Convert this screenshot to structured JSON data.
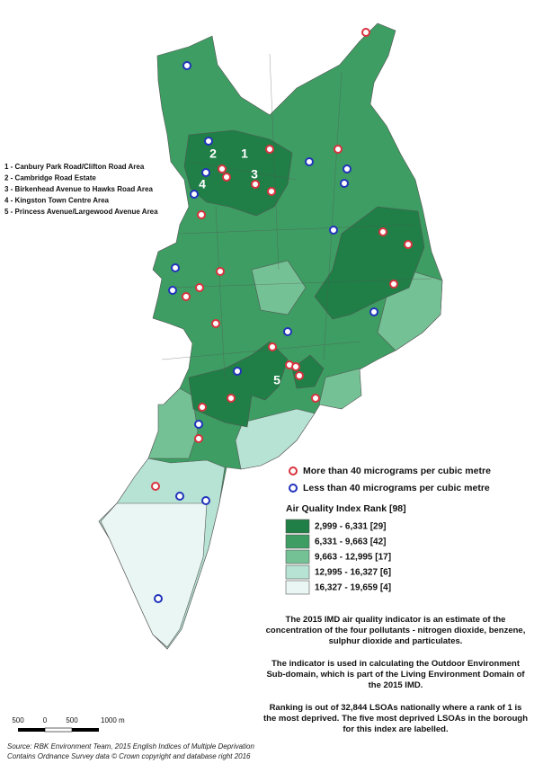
{
  "areas": [
    "1 -  Canbury Park Road/Clifton Road Area",
    "2 -  Cambridge Road Estate",
    "3 -  Birkenhead Avenue to Hawks Road Area",
    "4 -  Kingston Town Centre Area",
    "5 -  Princess Avenue/Largewood Avenue Area"
  ],
  "map_labels": [
    "1",
    "2",
    "3",
    "4",
    "5"
  ],
  "markers_legend": [
    {
      "label": "More than 40 micrograms per cubic metre",
      "color": "#d9333f"
    },
    {
      "label": "Less than 40 micrograms per cubic metre",
      "color": "#2233bb"
    }
  ],
  "legend": {
    "title": "Air Quality Index Rank [98]",
    "classes": [
      {
        "label": "2,999 - 6,331  [29]",
        "color": "#1f7f46"
      },
      {
        "label": "6,331 - 9,663  [42]",
        "color": "#3d9d62"
      },
      {
        "label": "9,663 - 12,995  [17]",
        "color": "#74c195"
      },
      {
        "label": "12,995 - 16,327  [6]",
        "color": "#b7e3d4"
      },
      {
        "label": "16,327 - 19,659  [4]",
        "color": "#e9f6f3"
      }
    ]
  },
  "notes": [
    "The 2015 IMD air quality indicator is an estimate of the concentration of the four pollutants - nitrogen dioxide, benzene, sulphur dioxide and particulates.",
    "The indicator is used in calculating the Outdoor Environment Sub-domain, which is part of the Living Environment Domain of the 2015 IMD.",
    "Ranking is out of 32,844 LSOAs nationally where a rank of 1 is the most deprived. The five most deprived LSOAs in the borough for this index are labelled."
  ],
  "scale": [
    "500",
    "0",
    "500",
    "1000 m"
  ],
  "source": [
    "Source: RBK Environment Team, 2015 English Indices of Multiple Deprivation",
    "Contains Ordnance Survey data © Crown copyright and database right 2016"
  ]
}
